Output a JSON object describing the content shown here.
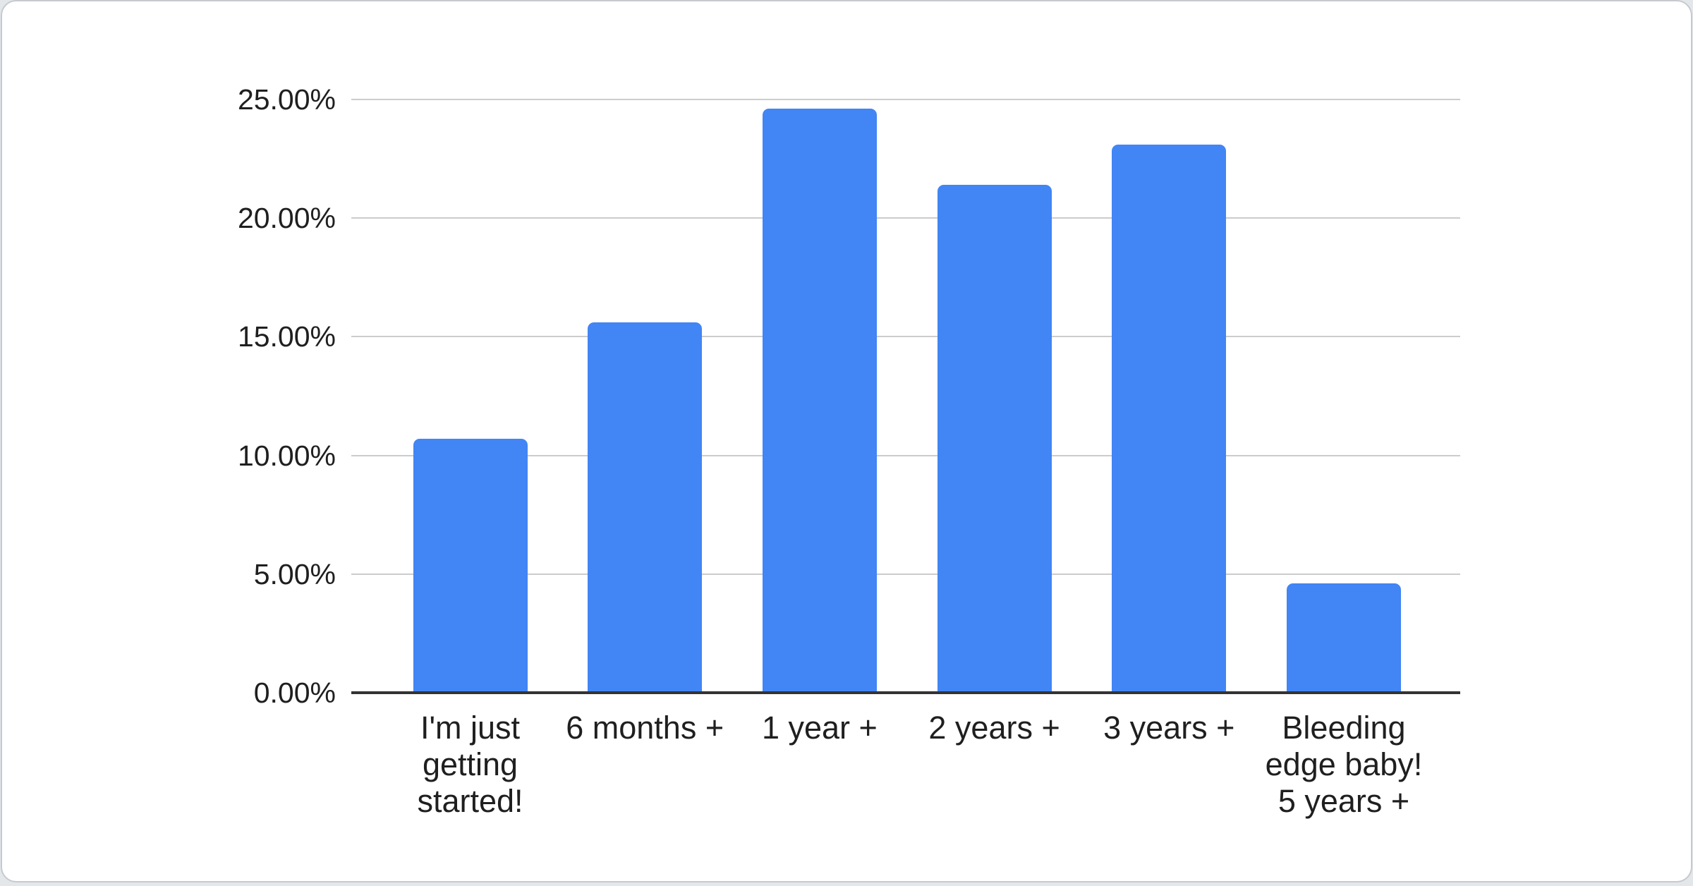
{
  "chart_data": {
    "type": "bar",
    "title": "",
    "categories": [
      "I'm just getting started!",
      "6 months +",
      "1 year +",
      "2 years +",
      "3 years +",
      "Bleeding edge baby! 5 years +"
    ],
    "categories_display": [
      "I'm just\ngetting\nstarted!",
      "6 months +",
      "1 year +",
      "2 years +",
      "3 years +",
      "Bleeding\nedge baby!\n5 years +"
    ],
    "values": [
      10.7,
      15.6,
      24.6,
      21.4,
      23.1,
      4.6
    ],
    "unit": "%",
    "xlabel": "",
    "ylabel": "",
    "y_ticks": [
      "25.00%",
      "20.00%",
      "15.00%",
      "10.00%",
      "5.00%",
      "0.00%"
    ],
    "y_tick_values": [
      25,
      20,
      15,
      10,
      5,
      0
    ],
    "ylim": [
      0,
      25
    ],
    "grid": true,
    "legend": "none",
    "colors": {
      "bar": "#4285f4",
      "gridline": "#cccccc",
      "axis": "#333333",
      "label": "#1f1f1f",
      "card_background": "#ffffff",
      "card_border": "#c6cacf",
      "page_background": "#e4e7ea"
    }
  }
}
